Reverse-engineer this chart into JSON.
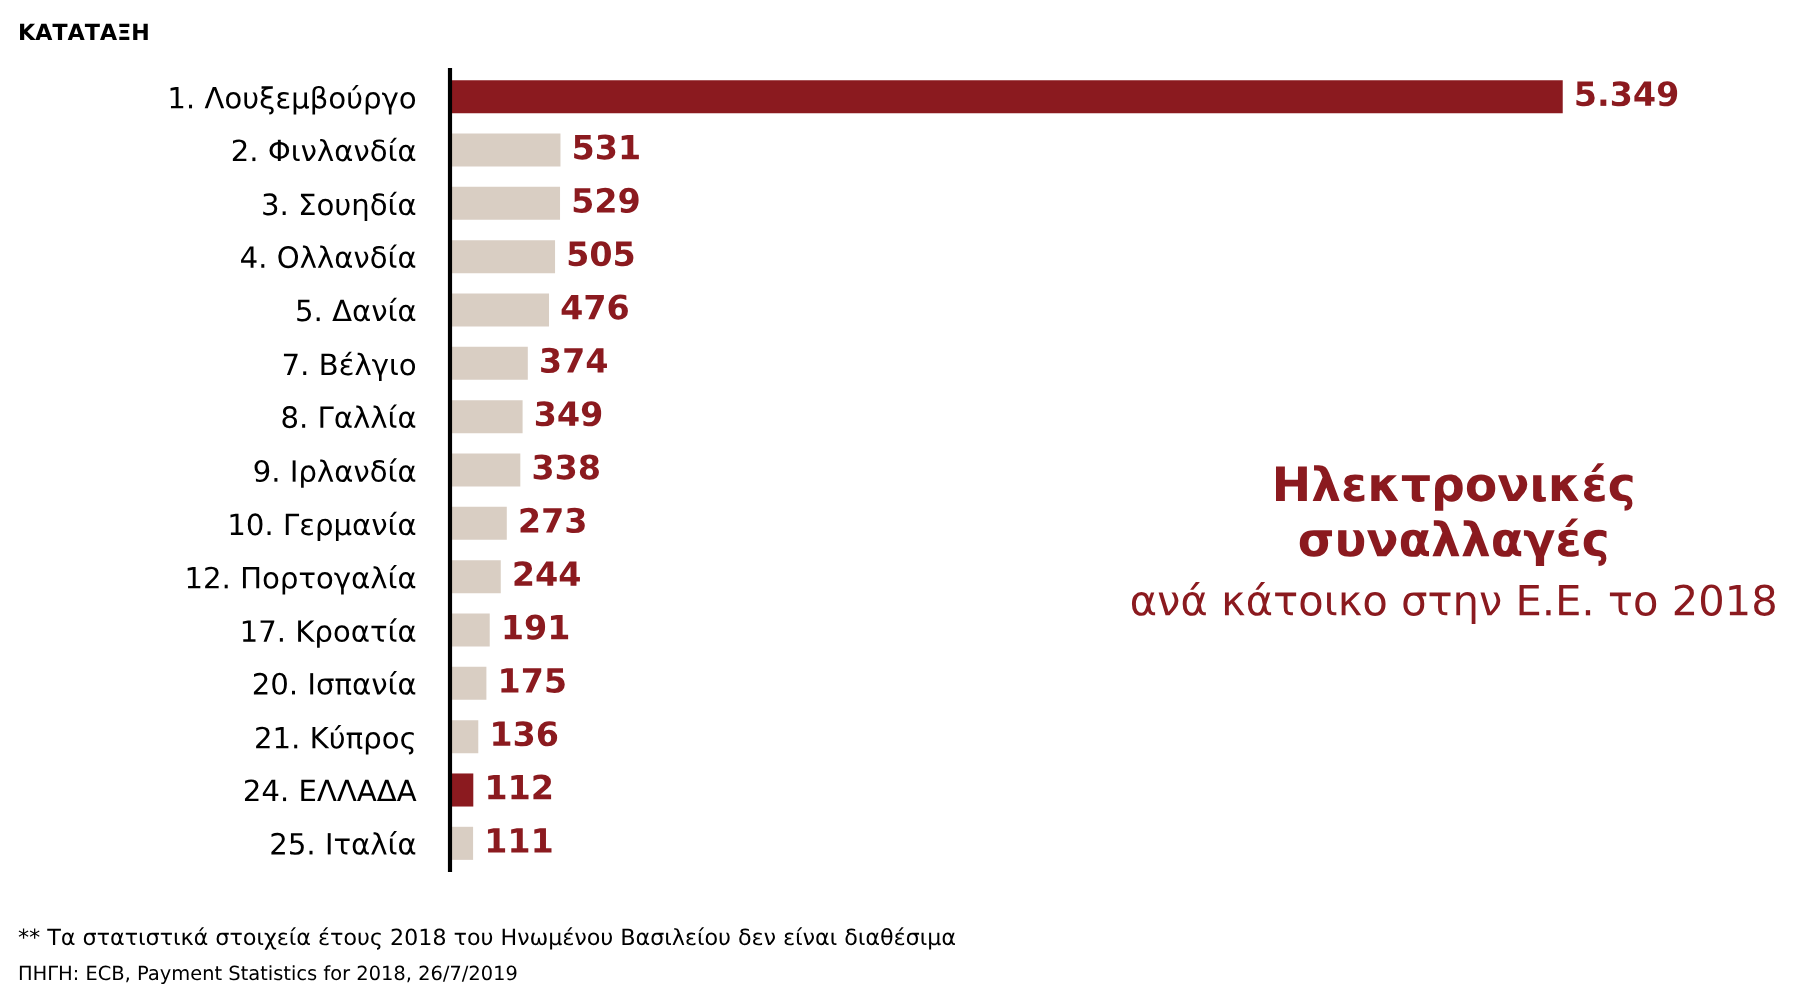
{
  "chart_data": {
    "type": "bar",
    "orientation": "horizontal",
    "title": "Ηλεκτρονικές συναλλαγές",
    "subtitle": "ανά κάτοικο στην Ε.Ε. το 2018",
    "ylabel": "ΚΑΤΑΤΑΞΗ",
    "categories": [
      "1. Λουξεμβούργο",
      "2. Φινλανδία",
      "3. Σουηδία",
      "4. Ολλανδία",
      "5. Δανία",
      "7. Βέλγιο",
      "8. Γαλλία",
      "9. Ιρλανδία",
      "10. Γερμανία",
      "12. Πορτογαλία",
      "17. Κροατία",
      "20. Ισπανία",
      "21. Κύπρος",
      "24. ΕΛΛΑΔΑ",
      "25. Ιταλία"
    ],
    "values": [
      5349,
      531,
      529,
      505,
      476,
      374,
      349,
      338,
      273,
      244,
      191,
      175,
      136,
      112,
      111
    ],
    "value_labels": [
      "5.349",
      "531",
      "529",
      "505",
      "476",
      "374",
      "349",
      "338",
      "273",
      "244",
      "191",
      "175",
      "136",
      "112",
      "111"
    ],
    "colors": [
      "#8b1a1f",
      "#d9cec3",
      "#d9cec3",
      "#d9cec3",
      "#d9cec3",
      "#d9cec3",
      "#d9cec3",
      "#d9cec3",
      "#d9cec3",
      "#d9cec3",
      "#d9cec3",
      "#d9cec3",
      "#d9cec3",
      "#8b1a1f",
      "#d9cec3"
    ],
    "annotations": [
      "** Τα στατιστικά στοιχεία έτους 2018 του Ηνωμένου Βασιλείου δεν είναι διαθέσιμα",
      "ΠΗΓΗ: ECB, Payment Statistics for 2018, 26/7/2019"
    ],
    "grid": false,
    "legend": false
  }
}
